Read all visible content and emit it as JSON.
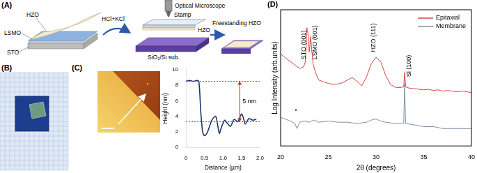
{
  "figure": {
    "panel_labels": [
      "(A)",
      "(B)",
      "(C)",
      "(D)"
    ],
    "schematic": {
      "film_layers": [
        "HZO",
        "LSMO",
        "STO"
      ],
      "etchant": "HCl+KCl",
      "microscope": "Optical Microscope",
      "stamp": "Stamp",
      "transferred_film": "HZO",
      "substrate": "SiO₂/Si sub.",
      "result": "Freestanding HZO"
    }
  },
  "chart_data": [
    {
      "type": "line",
      "x_label": "Distance (µm)",
      "y_label": "Height (nm)",
      "color": "#27356b",
      "x": [
        0,
        0.1,
        0.2,
        0.3,
        0.35,
        0.4,
        0.45,
        0.5,
        0.55,
        0.6,
        0.7,
        0.8,
        0.85,
        0.9,
        0.95,
        1.0,
        1.05,
        1.1,
        1.2,
        1.3,
        1.4,
        1.5,
        1.55,
        1.6,
        1.7,
        1.8,
        1.9
      ],
      "values": [
        8.5,
        8.6,
        8.5,
        8.6,
        8.4,
        4.5,
        2.0,
        1.5,
        1.7,
        2.2,
        3.5,
        4.0,
        3.0,
        1.8,
        2.5,
        3.1,
        3.5,
        3.2,
        2.7,
        3.6,
        3.3,
        4.3,
        3.8,
        3.0,
        3.7,
        3.5,
        3.6
      ],
      "xlim": [
        0,
        2
      ],
      "xticks": [
        0,
        0.5,
        {
          "value": 1,
          "label": "1.0"
        },
        1.5,
        {
          "value": 2,
          "label": "2.0"
        }
      ],
      "ylim": [
        0,
        10
      ],
      "yticks": [
        0,
        2,
        4,
        6,
        8,
        10
      ],
      "annotations": [
        {
          "text": "5 nm",
          "x": 1.45,
          "y_top": 8.5,
          "y_bottom": 3.3,
          "color": "#d62728"
        }
      ]
    },
    {
      "type": "line",
      "x_label": "2θ (degrees)",
      "y_label": "Log Intensity (arb.units)",
      "log": "y",
      "tick_labels": "x",
      "legend": "upper right",
      "xlim": [
        20,
        40
      ],
      "xticks": [
        20,
        25,
        30,
        35,
        40
      ],
      "ylim": [
        1,
        300000
      ],
      "series": [
        {
          "name": "Epitaxial",
          "color": "#d64541",
          "x": [
            20,
            20.5,
            21,
            21.5,
            22,
            22.4,
            22.6,
            22.75,
            22.85,
            23,
            23.15,
            23.25,
            23.4,
            23.7,
            24,
            24.5,
            25,
            25.5,
            26,
            26.5,
            27,
            27.5,
            28,
            28.5,
            29,
            29.5,
            30,
            30.5,
            31,
            31.5,
            32,
            32.5,
            32.9,
            33,
            33.1,
            33.5,
            34,
            34.5,
            35,
            35.5,
            36,
            36.5,
            37,
            37.5,
            38,
            38.5,
            39,
            39.5,
            40
          ],
          "values": [
            5000,
            3500,
            2500,
            1800,
            1300,
            1500,
            2500,
            57000,
            40000,
            6000,
            25000,
            8000,
            2000,
            800,
            450,
            380,
            330,
            300,
            310,
            350,
            450,
            560,
            400,
            260,
            600,
            2000,
            3700,
            2400,
            700,
            300,
            230,
            220,
            240,
            900,
            240,
            210,
            200,
            190,
            180,
            190,
            170,
            180,
            160,
            170,
            160,
            150,
            160,
            150,
            140
          ]
        },
        {
          "name": "Membrane",
          "color": "#8090a8",
          "x": [
            20,
            20.5,
            21,
            21.5,
            21.7,
            22,
            22.5,
            23,
            23.5,
            24,
            25,
            26,
            27,
            28,
            29,
            29.5,
            30,
            30.5,
            31,
            32,
            32.9,
            33,
            33.1,
            34,
            35,
            36,
            37,
            38,
            39,
            40
          ],
          "values": [
            14,
            12,
            10,
            8,
            5,
            9,
            10,
            9,
            11,
            9,
            10,
            9,
            9,
            8,
            9,
            11,
            12,
            10,
            9,
            8,
            8,
            320,
            8,
            7,
            6,
            6,
            5,
            5,
            5,
            5
          ]
        }
      ],
      "annotations": [
        {
          "text": "STO (001)",
          "x": 22.45,
          "y": 3000
        },
        {
          "text": "LSMO (001)",
          "x": 23.6,
          "y": 3000
        },
        {
          "text": "HZO (111)",
          "x": 29.75,
          "y": 6000
        },
        {
          "text": "Si (100)",
          "x": 33.45,
          "y": 600
        },
        {
          "text": "*",
          "x": 21.6,
          "y": 18
        }
      ]
    }
  ]
}
